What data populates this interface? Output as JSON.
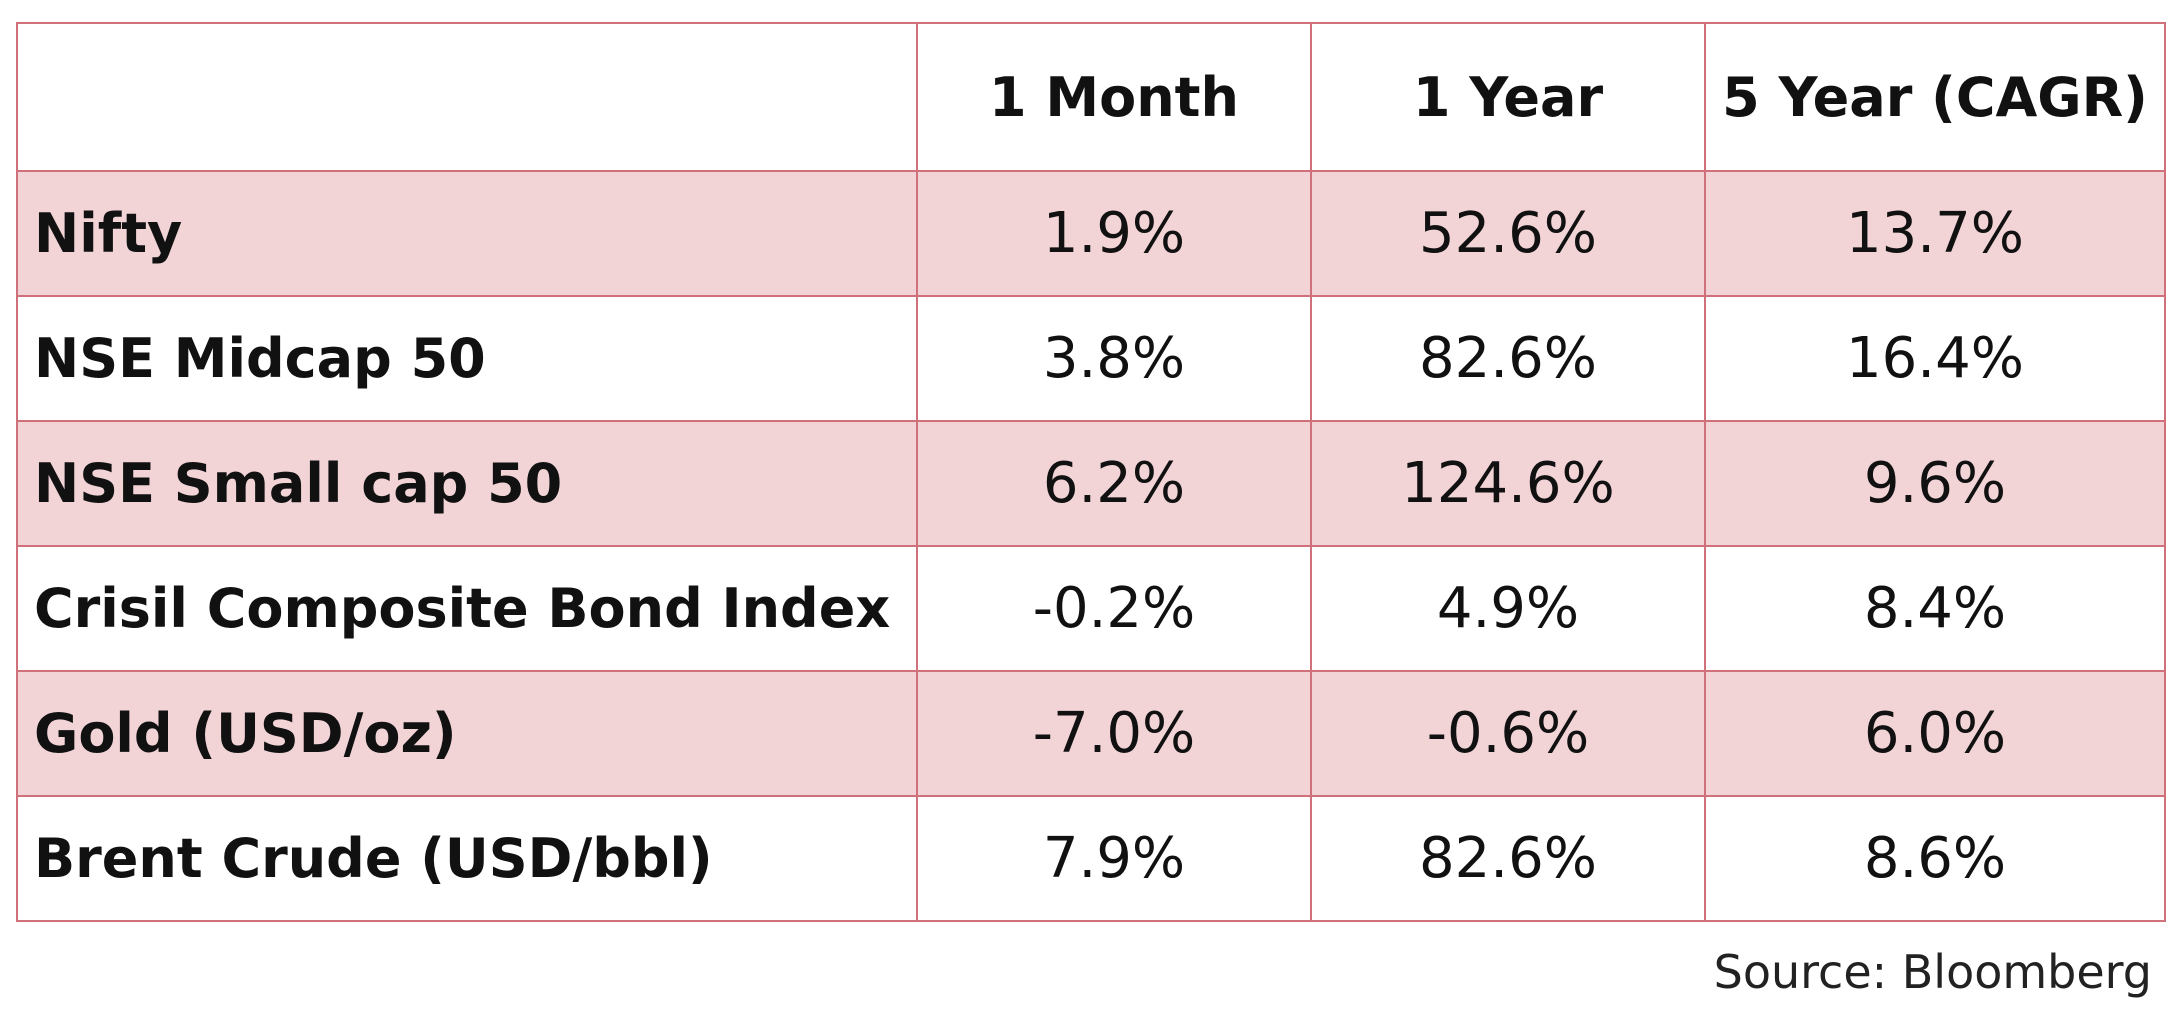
{
  "chart_data": {
    "type": "table",
    "columns": [
      "",
      "1 Month",
      "1 Year",
      "5 Year (CAGR)"
    ],
    "rows": [
      {
        "label": "Nifty",
        "values": [
          "1.9%",
          "52.6%",
          "13.7%"
        ],
        "shaded": true
      },
      {
        "label": "NSE Midcap 50",
        "values": [
          "3.8%",
          "82.6%",
          "16.4%"
        ],
        "shaded": false
      },
      {
        "label": "NSE Small cap 50",
        "values": [
          "6.2%",
          "124.6%",
          "9.6%"
        ],
        "shaded": true
      },
      {
        "label": "Crisil Composite Bond Index",
        "values": [
          "-0.2%",
          "4.9%",
          "8.4%"
        ],
        "shaded": false
      },
      {
        "label": "Gold (USD/oz)",
        "values": [
          "-7.0%",
          "-0.6%",
          "6.0%"
        ],
        "shaded": true
      },
      {
        "label": "Brent Crude (USD/bbl)",
        "values": [
          "7.9%",
          "82.6%",
          "8.6%"
        ],
        "shaded": false
      }
    ],
    "source": "Source: Bloomberg",
    "colors": {
      "border": "#d0707a",
      "shaded_row": "#f2d4d7",
      "plain_row": "#ffffff"
    }
  }
}
